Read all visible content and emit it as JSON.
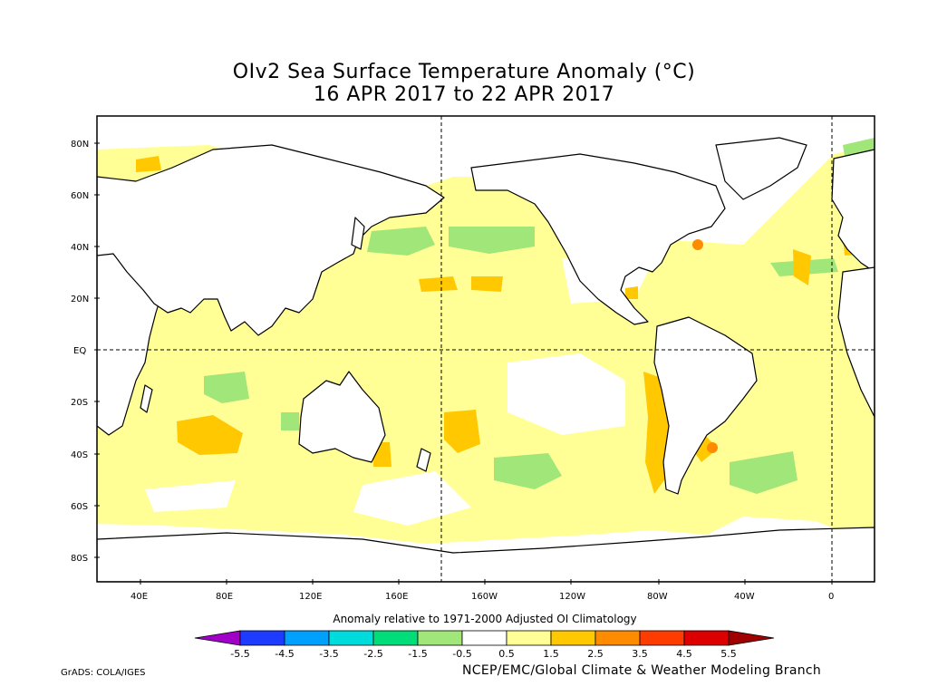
{
  "title": {
    "line1": "OIv2 Sea Surface Temperature Anomaly (°C)",
    "line2": "16 APR 2017 to 22 APR 2017"
  },
  "axes": {
    "lat_labels": [
      "80N",
      "60N",
      "40N",
      "20N",
      "EQ",
      "20S",
      "40S",
      "60S",
      "80S"
    ],
    "lon_labels": [
      "40E",
      "80E",
      "120E",
      "160E",
      "160W",
      "120W",
      "80W",
      "40W",
      "0"
    ]
  },
  "reference_lines": [
    "Equator",
    "180°",
    "0°"
  ],
  "colorbar": {
    "caption": "Anomaly relative to 1971-2000 Adjusted OI Climatology",
    "ticks": [
      "-5.5",
      "-4.5",
      "-3.5",
      "-2.5",
      "-1.5",
      "-0.5",
      "0.5",
      "1.5",
      "2.5",
      "3.5",
      "4.5",
      "5.5"
    ],
    "colors": [
      "#a000c8",
      "#1e3cff",
      "#00a0ff",
      "#00dcdc",
      "#00dc78",
      "#a0e678",
      "#ffffff",
      "#ffff96",
      "#ffc800",
      "#ff8c00",
      "#ff3c00",
      "#dc0000",
      "#a00000"
    ]
  },
  "credits": {
    "left": "GrADS: COLA/IGES",
    "right": "NCEP/EMC/Global Climate & Weather Modeling Branch"
  },
  "palette": {
    "warm_light": "#ffff96",
    "warm": "#ffc800",
    "warm_strong": "#ff8c00",
    "hot": "#ff3c00",
    "cool": "#a0e678"
  }
}
